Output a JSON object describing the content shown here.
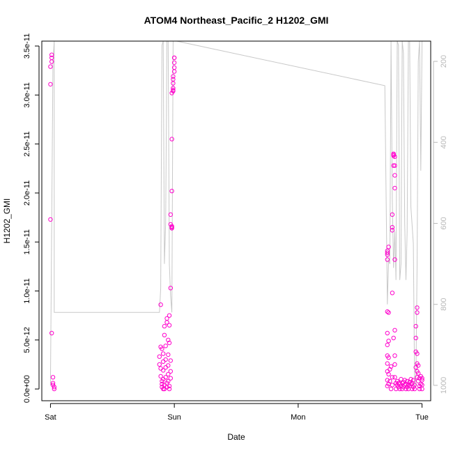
{
  "chart_data": {
    "type": "scatter",
    "title": "ATOM4 Northeast_Pacific_2 H1202_GMI",
    "xlabel": "Date",
    "ylabel": "H1202_GMI",
    "x_ticks": [
      {
        "label": "Sat",
        "value": 0
      },
      {
        "label": "Sun",
        "value": 1
      },
      {
        "label": "Mon",
        "value": 2
      },
      {
        "label": "Tue",
        "value": 3
      }
    ],
    "xlim": [
      -0.07,
      3.07
    ],
    "ylim": [
      -1.2e-12,
      3.55e-11
    ],
    "y_ticks": [
      {
        "label": "0.0e+00",
        "value": 0
      },
      {
        "label": "5.0e-12",
        "value": 5e-12
      },
      {
        "label": "1.0e-11",
        "value": 1e-11
      },
      {
        "label": "1.5e-11",
        "value": 1.5e-11
      },
      {
        "label": "2.0e-11",
        "value": 2e-11
      },
      {
        "label": "2.5e-11",
        "value": 2.5e-11
      },
      {
        "label": "3.0e-11",
        "value": 3e-11
      },
      {
        "label": "3.5e-11",
        "value": 3.5e-11
      }
    ],
    "y2lim": [
      1038,
      150
    ],
    "y2_ticks": [
      {
        "label": "200",
        "value": 200
      },
      {
        "label": "400",
        "value": 400
      },
      {
        "label": "600",
        "value": 600
      },
      {
        "label": "800",
        "value": 800
      },
      {
        "label": "1000",
        "value": 1000
      }
    ],
    "series": [
      {
        "color": "#ff00cc",
        "marker": "open-circle",
        "points": [
          [
            0.01,
            3.41e-11
          ],
          [
            0.01,
            3.38e-11
          ],
          [
            0.01,
            3.34e-11
          ],
          [
            0.0,
            3.29e-11
          ],
          [
            0.0,
            3.11e-11
          ],
          [
            0.0,
            1.73e-11
          ],
          [
            0.01,
            5.7e-12
          ],
          [
            0.02,
            1.2e-12
          ],
          [
            0.02,
            6e-13
          ],
          [
            0.02,
            4e-13
          ],
          [
            0.03,
            2e-13
          ],
          [
            0.03,
            0.0
          ],
          [
            0.89,
            8.6e-12
          ],
          [
            0.89,
            4.3e-12
          ],
          [
            0.88,
            3.3e-12
          ],
          [
            0.88,
            2.5e-12
          ],
          [
            0.89,
            2.1e-12
          ],
          [
            0.89,
            1.3e-12
          ],
          [
            0.9,
            8e-13
          ],
          [
            0.9,
            5e-13
          ],
          [
            0.9,
            2e-13
          ],
          [
            0.91,
            0.0
          ],
          [
            0.9,
            4.1e-12
          ],
          [
            0.91,
            3.6e-12
          ],
          [
            0.91,
            2.8e-12
          ],
          [
            0.91,
            1.9e-12
          ],
          [
            0.91,
            1e-12
          ],
          [
            0.92,
            4e-13
          ],
          [
            0.92,
            0.0
          ],
          [
            0.92,
            6.4e-12
          ],
          [
            0.92,
            5.5e-12
          ],
          [
            0.93,
            4.4e-12
          ],
          [
            0.93,
            3e-12
          ],
          [
            0.93,
            2.2e-12
          ],
          [
            0.93,
            1.2e-12
          ],
          [
            0.94,
            6e-13
          ],
          [
            0.94,
            2e-13
          ],
          [
            0.94,
            7.2e-12
          ],
          [
            0.94,
            6.8e-12
          ],
          [
            0.95,
            5e-12
          ],
          [
            0.95,
            3.5e-12
          ],
          [
            0.95,
            2.4e-12
          ],
          [
            0.95,
            1.5e-12
          ],
          [
            0.95,
            8e-13
          ],
          [
            0.96,
            3e-13
          ],
          [
            0.96,
            0.0
          ],
          [
            0.96,
            7.5e-12
          ],
          [
            0.96,
            6.5e-12
          ],
          [
            0.96,
            4.7e-12
          ],
          [
            0.97,
            2.9e-12
          ],
          [
            0.97,
            1.8e-12
          ],
          [
            0.97,
            1.1e-12
          ],
          [
            0.97,
            1.03e-11
          ],
          [
            0.97,
            1.78e-11
          ],
          [
            0.97,
            1.68e-11
          ],
          [
            0.98,
            1.65e-11
          ],
          [
            0.98,
            1.66e-11
          ],
          [
            0.98,
            1.64e-11
          ],
          [
            0.98,
            2.02e-11
          ],
          [
            0.98,
            2.55e-11
          ],
          [
            0.98,
            3.02e-11
          ],
          [
            0.99,
            3.05e-11
          ],
          [
            0.99,
            3.04e-11
          ],
          [
            0.99,
            3.07e-11
          ],
          [
            0.99,
            3.12e-11
          ],
          [
            0.99,
            3.16e-11
          ],
          [
            0.99,
            3.19e-11
          ],
          [
            1.0,
            3.24e-11
          ],
          [
            1.0,
            3.28e-11
          ],
          [
            1.0,
            3.33e-11
          ],
          [
            1.0,
            3.38e-11
          ],
          [
            1.0,
            3.38e-11
          ],
          [
            2.72,
            1.32e-11
          ],
          [
            2.72,
            1.37e-11
          ],
          [
            2.72,
            1.39e-11
          ],
          [
            2.72,
            1.41e-11
          ],
          [
            2.73,
            1.45e-11
          ],
          [
            2.72,
            7.9e-12
          ],
          [
            2.72,
            5.7e-12
          ],
          [
            2.72,
            4.5e-12
          ],
          [
            2.72,
            3.4e-12
          ],
          [
            2.72,
            2.6e-12
          ],
          [
            2.72,
            1.8e-12
          ],
          [
            2.72,
            9e-13
          ],
          [
            2.72,
            3e-13
          ],
          [
            2.73,
            7.8e-12
          ],
          [
            2.73,
            4.9e-12
          ],
          [
            2.73,
            3.2e-12
          ],
          [
            2.73,
            1.5e-12
          ],
          [
            2.73,
            5e-13
          ],
          [
            2.74,
            2e-12
          ],
          [
            2.74,
            8e-13
          ],
          [
            2.75,
            0.0
          ],
          [
            2.75,
            2.3e-12
          ],
          [
            2.76,
            4e-13
          ],
          [
            2.76,
            1.2e-12
          ],
          [
            2.76,
            1.62e-11
          ],
          [
            2.76,
            1.65e-11
          ],
          [
            2.76,
            1.78e-11
          ],
          [
            2.77,
            2.28e-11
          ],
          [
            2.77,
            2.38e-11
          ],
          [
            2.77,
            2.4e-11
          ],
          [
            2.77,
            2.39e-11
          ],
          [
            2.78,
            2.37e-11
          ],
          [
            2.78,
            2.28e-11
          ],
          [
            2.78,
            2.18e-11
          ],
          [
            2.78,
            2.05e-11
          ],
          [
            2.78,
            1.32e-11
          ],
          [
            2.76,
            9.8e-12
          ],
          [
            2.77,
            5.2e-12
          ],
          [
            2.78,
            6e-12
          ],
          [
            2.78,
            3.4e-12
          ],
          [
            2.78,
            2.5e-12
          ],
          [
            2.78,
            1.2e-12
          ],
          [
            2.79,
            6e-13
          ],
          [
            2.79,
            0.0
          ],
          [
            2.8,
            4e-13
          ],
          [
            2.8,
            8e-13
          ],
          [
            2.81,
            2e-13
          ],
          [
            2.81,
            6e-13
          ],
          [
            2.82,
            0.0
          ],
          [
            2.82,
            5e-13
          ],
          [
            2.83,
            1e-12
          ],
          [
            2.83,
            3e-13
          ],
          [
            2.84,
            6e-13
          ],
          [
            2.84,
            0.0
          ],
          [
            2.85,
            7e-13
          ],
          [
            2.85,
            2e-13
          ],
          [
            2.86,
            4e-13
          ],
          [
            2.86,
            9e-13
          ],
          [
            2.87,
            0.0
          ],
          [
            2.87,
            5e-13
          ],
          [
            2.88,
            2e-13
          ],
          [
            2.88,
            8e-13
          ],
          [
            2.89,
            4e-13
          ],
          [
            2.89,
            0.0
          ],
          [
            2.9,
            7e-13
          ],
          [
            2.9,
            3e-13
          ],
          [
            2.91,
            1e-12
          ],
          [
            2.91,
            5e-13
          ],
          [
            2.92,
            0.0
          ],
          [
            2.92,
            6e-13
          ],
          [
            2.93,
            2e-13
          ],
          [
            2.93,
            9e-13
          ],
          [
            2.94,
            4e-13
          ],
          [
            2.94,
            0.0
          ],
          [
            2.95,
            2.2e-12
          ],
          [
            2.95,
            3.8e-12
          ],
          [
            2.95,
            5.2e-12
          ],
          [
            2.95,
            6.4e-12
          ],
          [
            2.96,
            7.8e-12
          ],
          [
            2.96,
            8.3e-12
          ],
          [
            2.96,
            3.6e-12
          ],
          [
            2.96,
            2.6e-12
          ],
          [
            2.96,
            1.8e-12
          ],
          [
            2.96,
            1.2e-12
          ],
          [
            2.97,
            2.4e-12
          ],
          [
            2.97,
            1.6e-12
          ],
          [
            2.97,
            8e-13
          ],
          [
            2.98,
            3e-13
          ],
          [
            2.98,
            0.0
          ],
          [
            2.98,
            1.1e-12
          ],
          [
            2.99,
            5e-13
          ],
          [
            2.99,
            1.3e-12
          ],
          [
            3.0,
            1.1e-12
          ],
          [
            3.0,
            4e-13
          ],
          [
            3.0,
            0.0
          ],
          [
            3.0,
            9e-13
          ]
        ]
      },
      {
        "color": "#c8c8c8",
        "axis": "right",
        "style": "line",
        "points": [
          [
            0.0,
            1000
          ],
          [
            0.02,
            200
          ],
          [
            0.03,
            150
          ],
          [
            0.03,
            820
          ],
          [
            0.5,
            820
          ],
          [
            0.88,
            820
          ],
          [
            0.89,
            760
          ],
          [
            0.9,
            160
          ],
          [
            0.91,
            150
          ],
          [
            0.92,
            700
          ],
          [
            0.93,
            600
          ],
          [
            0.94,
            150
          ],
          [
            0.95,
            150
          ],
          [
            0.96,
            700
          ],
          [
            0.97,
            780
          ],
          [
            0.98,
            820
          ],
          [
            0.99,
            150
          ],
          [
            1.0,
            150
          ],
          [
            1.02,
            150
          ],
          [
            2.7,
            260
          ],
          [
            2.72,
            800
          ],
          [
            2.73,
            690
          ],
          [
            2.74,
            700
          ],
          [
            2.75,
            150
          ],
          [
            2.76,
            540
          ],
          [
            2.77,
            710
          ],
          [
            2.78,
            620
          ],
          [
            2.79,
            740
          ],
          [
            2.8,
            150
          ],
          [
            2.81,
            160
          ],
          [
            2.82,
            740
          ],
          [
            2.83,
            700
          ],
          [
            2.84,
            150
          ],
          [
            2.85,
            180
          ],
          [
            2.86,
            600
          ],
          [
            2.87,
            740
          ],
          [
            2.88,
            620
          ],
          [
            2.89,
            150
          ],
          [
            2.9,
            150
          ],
          [
            2.91,
            560
          ],
          [
            2.93,
            650
          ],
          [
            2.94,
            1000
          ],
          [
            2.95,
            1000
          ],
          [
            2.96,
            700
          ],
          [
            2.97,
            200
          ],
          [
            2.98,
            150
          ],
          [
            2.99,
            470
          ],
          [
            3.0,
            150
          ]
        ]
      }
    ],
    "grid": false,
    "legend": "none",
    "colors": {
      "points": "#ff00cc",
      "line": "#c8c8c8",
      "right_axis": "#b8b8b8"
    }
  }
}
